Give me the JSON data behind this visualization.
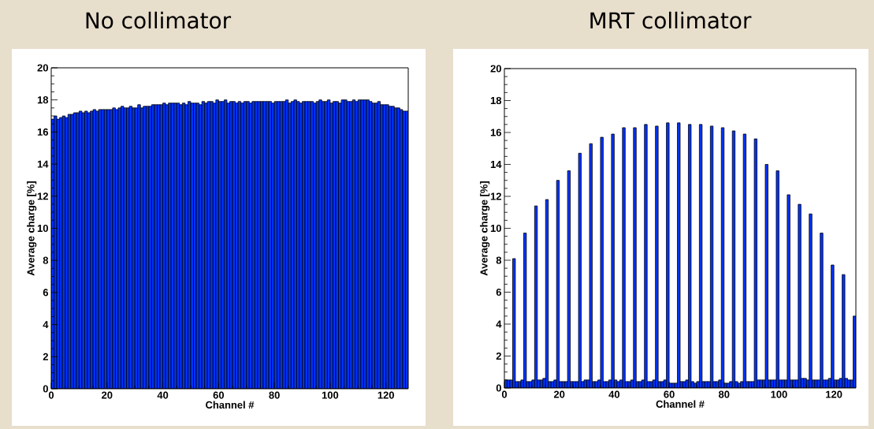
{
  "chart_data": [
    {
      "type": "histogram",
      "title": "No collimator",
      "xlabel": "Channel #",
      "ylabel": "Average charge [%]",
      "color": "#0033ff",
      "xlim": [
        0,
        128
      ],
      "ylim": [
        0,
        20
      ],
      "xticks": [
        0,
        20,
        40,
        60,
        80,
        100,
        120
      ],
      "yticks": [
        0,
        2,
        4,
        6,
        8,
        10,
        12,
        14,
        16,
        18,
        20
      ],
      "bins": [
        0,
        1,
        2,
        3,
        4,
        5,
        6,
        7,
        8,
        9,
        10,
        11,
        12,
        13,
        14,
        15,
        16,
        17,
        18,
        19,
        20,
        21,
        22,
        23,
        24,
        25,
        26,
        27,
        28,
        29,
        30,
        31,
        32,
        33,
        34,
        35,
        36,
        37,
        38,
        39,
        40,
        41,
        42,
        43,
        44,
        45,
        46,
        47,
        48,
        49,
        50,
        51,
        52,
        53,
        54,
        55,
        56,
        57,
        58,
        59,
        60,
        61,
        62,
        63,
        64,
        65,
        66,
        67,
        68,
        69,
        70,
        71,
        72,
        73,
        74,
        75,
        76,
        77,
        78,
        79,
        80,
        81,
        82,
        83,
        84,
        85,
        86,
        87,
        88,
        89,
        90,
        91,
        92,
        93,
        94,
        95,
        96,
        97,
        98,
        99,
        100,
        101,
        102,
        103,
        104,
        105,
        106,
        107,
        108,
        109,
        110,
        111,
        112,
        113,
        114,
        115,
        116,
        117,
        118,
        119,
        120,
        121,
        122,
        123,
        124,
        125,
        126,
        127,
        128
      ],
      "values": [
        16.8,
        17.0,
        16.8,
        16.9,
        17.0,
        16.9,
        17.1,
        17.1,
        17.2,
        17.2,
        17.3,
        17.2,
        17.3,
        17.2,
        17.3,
        17.4,
        17.3,
        17.4,
        17.4,
        17.4,
        17.4,
        17.4,
        17.5,
        17.4,
        17.5,
        17.6,
        17.5,
        17.5,
        17.6,
        17.5,
        17.5,
        17.7,
        17.5,
        17.6,
        17.6,
        17.6,
        17.7,
        17.7,
        17.7,
        17.7,
        17.8,
        17.7,
        17.8,
        17.8,
        17.8,
        17.8,
        17.7,
        17.8,
        17.7,
        17.9,
        17.8,
        17.8,
        17.8,
        17.7,
        17.9,
        17.8,
        17.9,
        17.9,
        17.8,
        18.0,
        17.9,
        17.9,
        18.0,
        17.8,
        17.9,
        17.9,
        17.8,
        17.9,
        17.8,
        17.9,
        17.9,
        17.8,
        17.9,
        17.9,
        17.9,
        17.9,
        17.9,
        17.9,
        17.9,
        17.8,
        17.9,
        17.9,
        17.9,
        17.9,
        18.0,
        17.8,
        17.9,
        18.0,
        17.9,
        17.8,
        17.9,
        17.9,
        17.9,
        17.9,
        17.8,
        17.9,
        18.0,
        17.9,
        17.9,
        18.0,
        17.8,
        17.9,
        17.9,
        17.8,
        18.0,
        18.0,
        17.9,
        17.9,
        18.0,
        17.9,
        18.0,
        18.0,
        18.0,
        18.0,
        17.9,
        17.8,
        17.8,
        17.9,
        17.7,
        17.7,
        17.7,
        17.6,
        17.6,
        17.5,
        17.5,
        17.4,
        17.3,
        17.3
      ]
    },
    {
      "type": "histogram",
      "title": "MRT collimator",
      "xlabel": "Channel #",
      "ylabel": "Average charge [%]",
      "color": "#0033ff",
      "xlim": [
        0,
        128
      ],
      "ylim": [
        0,
        20
      ],
      "xticks": [
        0,
        20,
        40,
        60,
        80,
        100,
        120
      ],
      "yticks": [
        0,
        2,
        4,
        6,
        8,
        10,
        12,
        14,
        16,
        18,
        20
      ],
      "bins": [
        0,
        1,
        2,
        3,
        4,
        5,
        6,
        7,
        8,
        9,
        10,
        11,
        12,
        13,
        14,
        15,
        16,
        17,
        18,
        19,
        20,
        21,
        22,
        23,
        24,
        25,
        26,
        27,
        28,
        29,
        30,
        31,
        32,
        33,
        34,
        35,
        36,
        37,
        38,
        39,
        40,
        41,
        42,
        43,
        44,
        45,
        46,
        47,
        48,
        49,
        50,
        51,
        52,
        53,
        54,
        55,
        56,
        57,
        58,
        59,
        60,
        61,
        62,
        63,
        64,
        65,
        66,
        67,
        68,
        69,
        70,
        71,
        72,
        73,
        74,
        75,
        76,
        77,
        78,
        79,
        80,
        81,
        82,
        83,
        84,
        85,
        86,
        87,
        88,
        89,
        90,
        91,
        92,
        93,
        94,
        95,
        96,
        97,
        98,
        99,
        100,
        101,
        102,
        103,
        104,
        105,
        106,
        107,
        108,
        109,
        110,
        111,
        112,
        113,
        114,
        115,
        116,
        117,
        118,
        119,
        120,
        121,
        122,
        123,
        124,
        125,
        126,
        127,
        128
      ],
      "values": [
        0.5,
        0.5,
        0.5,
        8.1,
        0.4,
        0.4,
        0.5,
        9.7,
        0.4,
        0.4,
        0.5,
        11.4,
        0.5,
        0.5,
        0.6,
        11.8,
        0.4,
        0.4,
        0.5,
        13.0,
        0.4,
        0.4,
        0.4,
        13.6,
        0.4,
        0.4,
        0.4,
        14.7,
        0.4,
        0.5,
        0.5,
        15.3,
        0.4,
        0.4,
        0.5,
        15.7,
        0.4,
        0.4,
        0.5,
        15.9,
        0.5,
        0.4,
        0.5,
        16.3,
        0.4,
        0.4,
        0.5,
        16.3,
        0.4,
        0.4,
        0.5,
        16.5,
        0.4,
        0.4,
        0.5,
        16.4,
        0.4,
        0.4,
        0.5,
        16.6,
        0.3,
        0.3,
        0.3,
        16.6,
        0.4,
        0.4,
        0.5,
        16.5,
        0.4,
        0.3,
        0.4,
        16.5,
        0.4,
        0.4,
        0.4,
        16.4,
        0.4,
        0.4,
        0.5,
        16.3,
        0.3,
        0.3,
        0.4,
        16.1,
        0.4,
        0.3,
        0.4,
        15.9,
        0.4,
        0.4,
        0.4,
        15.6,
        0.5,
        0.5,
        0.5,
        14.0,
        0.5,
        0.5,
        0.5,
        13.6,
        0.5,
        0.5,
        0.5,
        12.1,
        0.5,
        0.5,
        0.5,
        11.5,
        0.6,
        0.6,
        0.5,
        10.9,
        0.5,
        0.5,
        0.5,
        9.7,
        0.5,
        0.5,
        0.6,
        7.7,
        0.5,
        0.5,
        0.6,
        7.1,
        0.6,
        0.5,
        0.5,
        4.5
      ]
    }
  ]
}
